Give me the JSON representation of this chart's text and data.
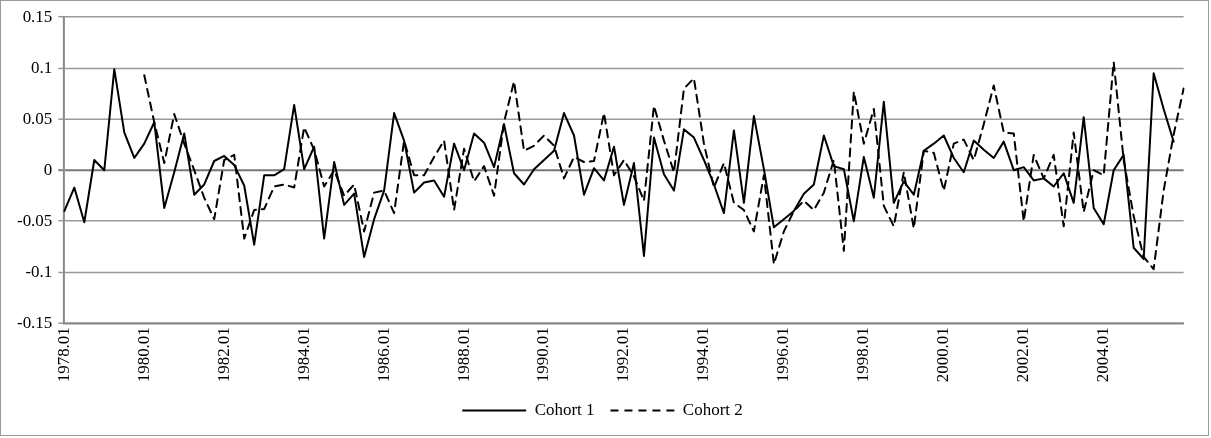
{
  "chart_data": {
    "type": "line",
    "categories": [
      "1978.01",
      null,
      null,
      null,
      null,
      null,
      null,
      null,
      "1980.01",
      null,
      null,
      null,
      null,
      null,
      null,
      null,
      "1982.01",
      null,
      null,
      null,
      null,
      null,
      null,
      null,
      "1984.01",
      null,
      null,
      null,
      null,
      null,
      null,
      null,
      "1986.01",
      null,
      null,
      null,
      null,
      null,
      null,
      null,
      "1988.01",
      null,
      null,
      null,
      null,
      null,
      null,
      null,
      "1990.01",
      null,
      null,
      null,
      null,
      null,
      null,
      null,
      "1992.01",
      null,
      null,
      null,
      null,
      null,
      null,
      null,
      "1994.01",
      null,
      null,
      null,
      null,
      null,
      null,
      null,
      "1996.01",
      null,
      null,
      null,
      null,
      null,
      null,
      null,
      "1998.01",
      null,
      null,
      null,
      null,
      null,
      null,
      null,
      "2000.01",
      null,
      null,
      null,
      null,
      null,
      null,
      null,
      "2002.01",
      null,
      null,
      null,
      null,
      null,
      null,
      null,
      "2004.01",
      null,
      null,
      null,
      null,
      null,
      null,
      null,
      null
    ],
    "series": [
      {
        "name": "Cohort 1",
        "color": "#000000",
        "line_style": "solid",
        "values": [
          -0.04,
          -0.017,
          -0.051,
          0.01,
          0.0,
          0.099,
          0.037,
          0.012,
          0.026,
          0.047,
          -0.037,
          -0.002,
          0.036,
          -0.024,
          -0.014,
          0.009,
          0.014,
          0.005,
          -0.015,
          -0.073,
          -0.005,
          -0.005,
          0.001,
          0.064,
          0.001,
          0.023,
          -0.067,
          0.008,
          -0.034,
          -0.023,
          -0.085,
          -0.048,
          -0.02,
          0.056,
          0.029,
          -0.022,
          -0.012,
          -0.01,
          -0.026,
          0.026,
          0.0,
          0.036,
          0.027,
          0.003,
          0.045,
          -0.003,
          -0.014,
          0.001,
          0.01,
          0.019,
          0.056,
          0.034,
          -0.024,
          0.002,
          -0.01,
          0.023,
          -0.034,
          0.007,
          -0.084,
          0.032,
          -0.004,
          -0.02,
          0.04,
          0.032,
          0.01,
          -0.014,
          -0.042,
          0.039,
          -0.032,
          0.053,
          0.001,
          -0.056,
          -0.048,
          -0.04,
          -0.023,
          -0.014,
          0.034,
          0.004,
          0.001,
          -0.05,
          0.013,
          -0.027,
          0.067,
          -0.032,
          -0.011,
          -0.024,
          0.019,
          0.026,
          0.034,
          0.012,
          -0.002,
          0.029,
          0.02,
          0.012,
          0.028,
          0.0,
          0.003,
          -0.01,
          -0.008,
          -0.016,
          -0.003,
          -0.032,
          0.052,
          -0.037,
          -0.053,
          0.0,
          0.015,
          -0.076,
          -0.087,
          0.095,
          0.06,
          0.028,
          null
        ]
      },
      {
        "name": "Cohort 2",
        "color": "#000000",
        "line_style": "dashed",
        "values": [
          null,
          null,
          null,
          null,
          null,
          null,
          null,
          null,
          0.093,
          0.047,
          0.007,
          0.055,
          0.026,
          0.0,
          -0.027,
          -0.048,
          0.01,
          0.015,
          -0.067,
          -0.039,
          -0.038,
          -0.016,
          -0.014,
          -0.017,
          0.042,
          0.02,
          -0.016,
          0.0,
          -0.025,
          -0.014,
          -0.06,
          -0.022,
          -0.02,
          -0.042,
          0.029,
          -0.005,
          -0.005,
          0.013,
          0.029,
          -0.039,
          0.021,
          -0.011,
          0.004,
          -0.025,
          0.047,
          0.087,
          0.019,
          0.024,
          0.034,
          0.024,
          -0.008,
          0.013,
          0.008,
          0.009,
          0.056,
          -0.005,
          0.01,
          -0.006,
          -0.03,
          0.063,
          0.029,
          -0.002,
          0.08,
          0.09,
          0.026,
          -0.017,
          0.007,
          -0.032,
          -0.039,
          -0.06,
          -0.005,
          -0.092,
          -0.06,
          -0.04,
          -0.03,
          -0.039,
          -0.022,
          0.01,
          -0.079,
          0.077,
          0.026,
          0.06,
          -0.035,
          -0.055,
          -0.002,
          -0.057,
          0.019,
          0.017,
          -0.02,
          0.026,
          0.03,
          0.01,
          0.045,
          0.083,
          0.037,
          0.036,
          -0.05,
          0.015,
          -0.008,
          0.015,
          -0.055,
          0.037,
          -0.041,
          0.0,
          -0.005,
          0.106,
          0.01,
          -0.045,
          -0.085,
          -0.097,
          -0.02,
          0.035,
          0.08
        ]
      }
    ],
    "ylim": [
      -0.15,
      0.15
    ],
    "yticks": [
      0.15,
      0.1,
      0.05,
      0,
      -0.05,
      -0.1,
      -0.15
    ],
    "grid": "y",
    "legend": "bottom",
    "marker": "none"
  }
}
